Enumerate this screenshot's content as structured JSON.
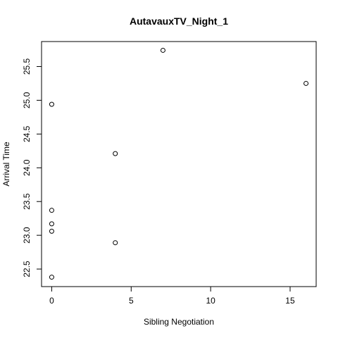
{
  "chart_data": {
    "type": "scatter",
    "title": "AutavauxTV_Night_1",
    "xlabel": "Sibling Negotiation",
    "ylabel": "Arrival Time",
    "xlim": [
      -0.64,
      16.64
    ],
    "ylim": [
      22.24,
      25.87
    ],
    "x_ticks": [
      0,
      5,
      10,
      15
    ],
    "y_ticks": [
      22.5,
      23.0,
      23.5,
      24.0,
      24.5,
      25.0,
      25.5
    ],
    "x_tick_labels": [
      "0",
      "5",
      "10",
      "15"
    ],
    "y_tick_labels": [
      "22.5",
      "23.0",
      "23.5",
      "24.0",
      "24.5",
      "25.0",
      "25.5"
    ],
    "grid": false,
    "legend": "none",
    "point_marker": "open-circle",
    "series": [
      {
        "x": [
          0,
          0,
          0,
          0,
          0,
          4,
          4,
          7,
          16
        ],
        "y": [
          24.94,
          23.37,
          23.17,
          23.06,
          22.38,
          24.21,
          22.89,
          25.74,
          25.25
        ]
      }
    ]
  }
}
